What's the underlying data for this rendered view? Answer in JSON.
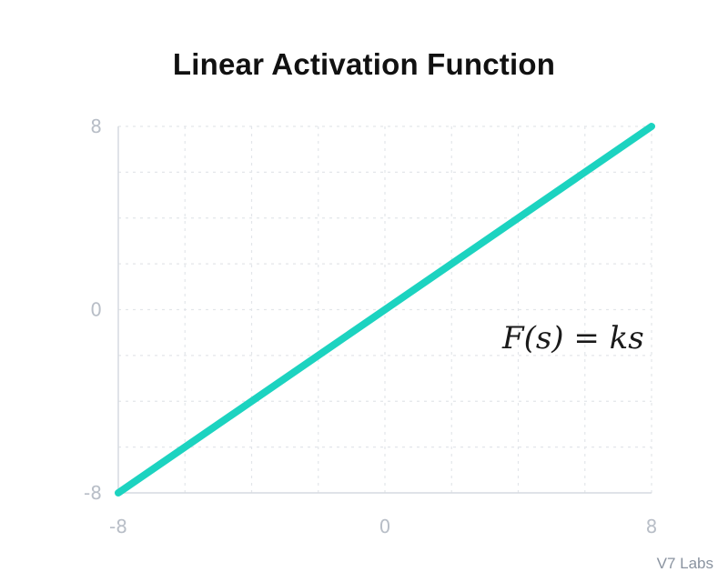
{
  "chart_data": {
    "type": "line",
    "title": "Linear Activation Function",
    "xlabel": "",
    "ylabel": "",
    "xlim": [
      -8,
      8
    ],
    "ylim": [
      -8,
      8
    ],
    "x_ticks": [
      "-8",
      "0",
      "8"
    ],
    "y_ticks": [
      "8",
      "0",
      "-8"
    ],
    "series": [
      {
        "x": [
          -8,
          8
        ],
        "y": [
          -8,
          8
        ],
        "color": "#1cd3c0"
      }
    ],
    "annotation": "F(s) = ks",
    "grid": true
  },
  "watermark": "V7 Labs",
  "colors": {
    "line": "#1cd3c0",
    "grid": "#e3e6ea",
    "axis": "#d6dae0",
    "tick": "#b8bec7"
  }
}
